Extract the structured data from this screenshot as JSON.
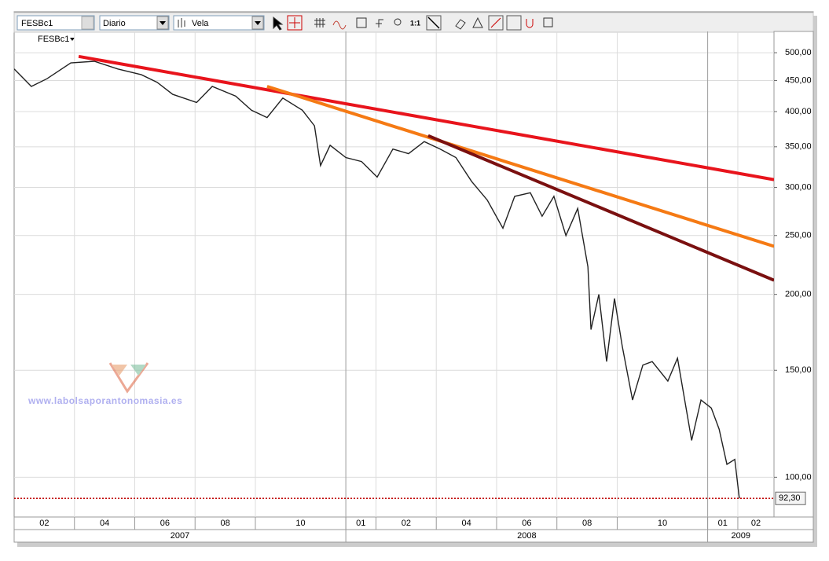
{
  "toolbar": {
    "symbol": "FESBc1",
    "period": "Diario",
    "style": "Vela",
    "zoom": "1:1"
  },
  "watermark": "www.labolsaporantonomasia.es",
  "chart_data": {
    "type": "line",
    "log_scale": true,
    "grid": true,
    "series": [
      {
        "name": "FESBc1",
        "color": "#222222",
        "x": [
          1.0,
          1.57,
          2.09,
          2.88,
          3.66,
          4.44,
          5.22,
          5.74,
          6.26,
          7.05,
          7.57,
          8.35,
          8.87,
          9.39,
          9.91,
          10.56,
          10.96,
          11.16,
          11.48,
          12.0,
          12.52,
          13.04,
          13.56,
          14.08,
          14.6,
          15.13,
          15.65,
          16.17,
          16.69,
          17.21,
          17.6,
          18.12,
          18.51,
          18.9,
          19.3,
          19.69,
          20.03,
          20.13,
          20.39,
          20.65,
          20.91,
          21.17,
          21.51,
          21.85,
          22.16,
          22.68,
          23.0,
          23.47,
          23.78,
          24.12,
          24.38,
          24.64,
          24.9,
          25.05
        ],
        "values": [
          470,
          440,
          453,
          481,
          484,
          470,
          460,
          447,
          427,
          414,
          440,
          424,
          402,
          391,
          421,
          402,
          379,
          326,
          352,
          336,
          331,
          312,
          347,
          341,
          357,
          347,
          336,
          307,
          286,
          257,
          290,
          294,
          269,
          290,
          250,
          277,
          222,
          175,
          200,
          155,
          197,
          164,
          134,
          153,
          155,
          144,
          157,
          115,
          134,
          130,
          120,
          105,
          107,
          92.3
        ]
      }
    ],
    "trend_lines": [
      {
        "color": "#e8141c",
        "x": [
          3.14,
          26.2
        ],
        "values": [
          493,
          309
        ]
      },
      {
        "color": "#f57a14",
        "x": [
          9.39,
          26.2
        ],
        "values": [
          440,
          240
        ]
      },
      {
        "color": "#7a1010",
        "x": [
          14.73,
          26.2
        ],
        "values": [
          365,
          211
        ]
      }
    ],
    "last_price": {
      "value": 92.3,
      "label": "92,30",
      "color": "#c00000"
    },
    "xlim": [
      1,
      26.2
    ],
    "xticks": [
      {
        "value": 1,
        "label": "02"
      },
      {
        "value": 3,
        "label": "04"
      },
      {
        "value": 5,
        "label": "06"
      },
      {
        "value": 7,
        "label": "08"
      },
      {
        "value": 9,
        "label": "10"
      },
      {
        "value": 12,
        "label": "01"
      },
      {
        "value": 13,
        "label": "02"
      },
      {
        "value": 15,
        "label": "04"
      },
      {
        "value": 17,
        "label": "06"
      },
      {
        "value": 19,
        "label": "08"
      },
      {
        "value": 21,
        "label": "10"
      },
      {
        "value": 24,
        "label": "01"
      },
      {
        "value": 25,
        "label": "02"
      }
    ],
    "year_ticks": [
      {
        "value": 0,
        "label": "2007"
      },
      {
        "value": 12,
        "label": "2008"
      },
      {
        "value": 24,
        "label": "2009"
      }
    ],
    "ylim": [
      86,
      542
    ],
    "yticks": [
      {
        "value": 100,
        "label": "100,00"
      },
      {
        "value": 150,
        "label": "150,00"
      },
      {
        "value": 200,
        "label": "200,00"
      },
      {
        "value": 250,
        "label": "250,00"
      },
      {
        "value": 300,
        "label": "300,00"
      },
      {
        "value": 350,
        "label": "350,00"
      },
      {
        "value": 400,
        "label": "400,00"
      },
      {
        "value": 450,
        "label": "450,00"
      },
      {
        "value": 500,
        "label": "500,00"
      }
    ]
  }
}
